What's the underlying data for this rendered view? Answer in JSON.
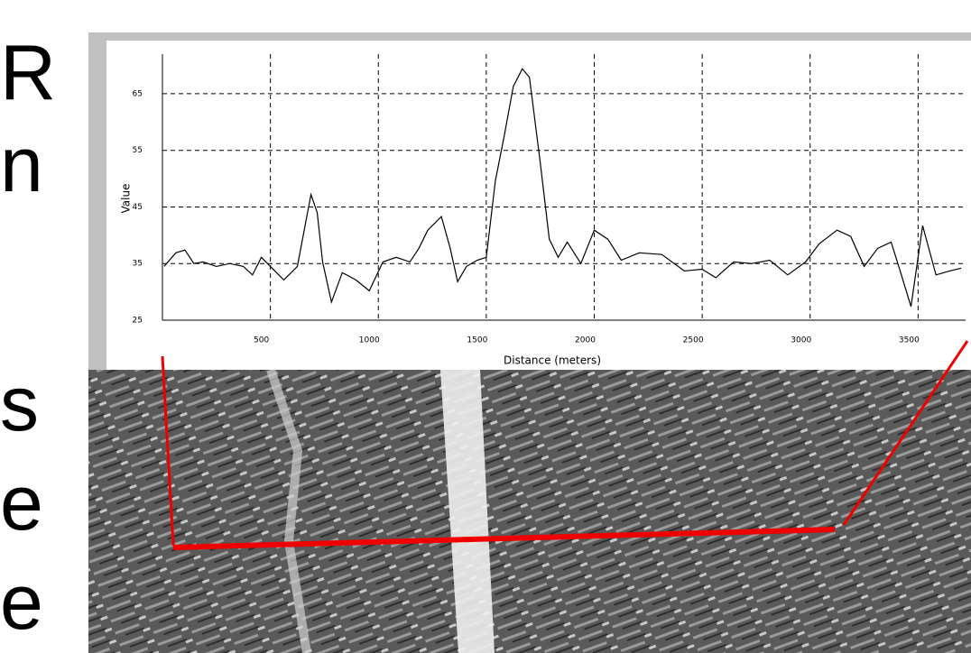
{
  "side_text": [
    "R",
    "n",
    "s",
    "e",
    "e"
  ],
  "chart_data": {
    "type": "line",
    "x_label": "Distance (meters)",
    "y_label": "Value",
    "xlim": [
      0,
      3720
    ],
    "ylim": [
      25,
      72
    ],
    "xticks": [
      500,
      1000,
      1500,
      2000,
      2500,
      3000,
      3500
    ],
    "yticks": [
      25,
      35,
      45,
      55,
      65
    ],
    "grid": true,
    "series": [
      {
        "color": "#000000",
        "x": [
          8,
          62,
          104,
          146,
          188,
          250,
          312,
          375,
          417,
          458,
          500,
          562,
          625,
          688,
          717,
          742,
          783,
          833,
          896,
          958,
          1021,
          1083,
          1146,
          1188,
          1229,
          1292,
          1333,
          1367,
          1408,
          1458,
          1500,
          1542,
          1583,
          1625,
          1667,
          1700,
          1750,
          1792,
          1833,
          1875,
          1938,
          2000,
          2063,
          2125,
          2208,
          2313,
          2417,
          2500,
          2563,
          2646,
          2729,
          2813,
          2896,
          2979,
          3042,
          3125,
          3188,
          3250,
          3313,
          3375,
          3417,
          3467,
          3521,
          3583,
          3646,
          3700
        ],
        "values": [
          34.5,
          36.9,
          37.4,
          35,
          35.3,
          34.5,
          35,
          34.5,
          33,
          36.1,
          34.5,
          32.1,
          34.5,
          47.2,
          44,
          35.3,
          28.2,
          33.4,
          32.1,
          30.2,
          35.3,
          36.1,
          35.3,
          37.7,
          40.9,
          43.3,
          37.7,
          31.8,
          34.5,
          35.6,
          36.1,
          49.6,
          57.5,
          66.3,
          69.4,
          67.9,
          52.8,
          39.3,
          36.1,
          38.8,
          35,
          40.9,
          39.3,
          35.6,
          36.9,
          36.6,
          33.7,
          34,
          32.5,
          35.3,
          35,
          35.6,
          33,
          35.3,
          38.5,
          40.9,
          39.8,
          34.5,
          37.7,
          38.8,
          33.7,
          27.4,
          41.7,
          33,
          33.7,
          34.2
        ]
      }
    ]
  }
}
